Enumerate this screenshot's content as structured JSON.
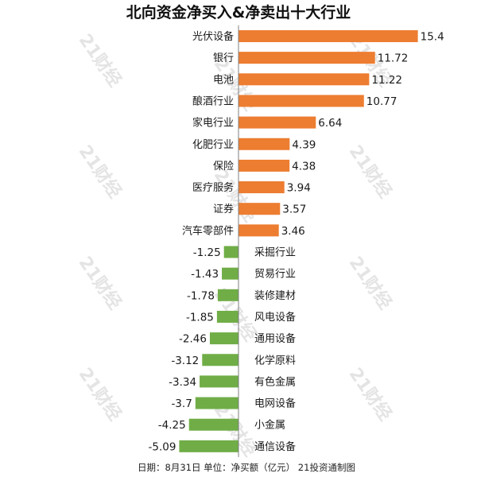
{
  "title": "北向资金净买入&净卖出十大行业",
  "footer": "日期：8月31日 单位：净买额（亿元） 21投资通制图",
  "watermark": "21财经",
  "colors": {
    "positive": "#ed7d31",
    "negative": "#70ad47",
    "axis": "#7f7f7f"
  },
  "chart_data": {
    "type": "bar",
    "orientation": "horizontal",
    "categories": [
      "光伏设备",
      "银行",
      "电池",
      "酿酒行业",
      "家电行业",
      "化肥行业",
      "保险",
      "医疗服务",
      "证券",
      "汽车零部件",
      "采掘行业",
      "贸易行业",
      "装修建材",
      "风电设备",
      "通用设备",
      "化学原料",
      "有色金属",
      "电网设备",
      "小金属",
      "通信设备"
    ],
    "values": [
      15.4,
      11.72,
      11.22,
      10.77,
      6.64,
      4.39,
      4.38,
      3.94,
      3.57,
      3.46,
      -1.25,
      -1.43,
      -1.78,
      -1.85,
      -2.46,
      -3.12,
      -3.34,
      -3.7,
      -4.25,
      -5.09
    ],
    "value_labels": [
      "15.4",
      "11.72",
      "11.22",
      "10.77",
      "6.64",
      "4.39",
      "4.38",
      "3.94",
      "3.57",
      "3.46",
      "-1.25",
      "-1.43",
      "-1.78",
      "-1.85",
      "-2.46",
      "-3.12",
      "-3.34",
      "-3.7",
      "-4.25",
      "-5.09"
    ],
    "xlim": [
      -5.5,
      15.4
    ],
    "grid": false,
    "legend": "none"
  }
}
